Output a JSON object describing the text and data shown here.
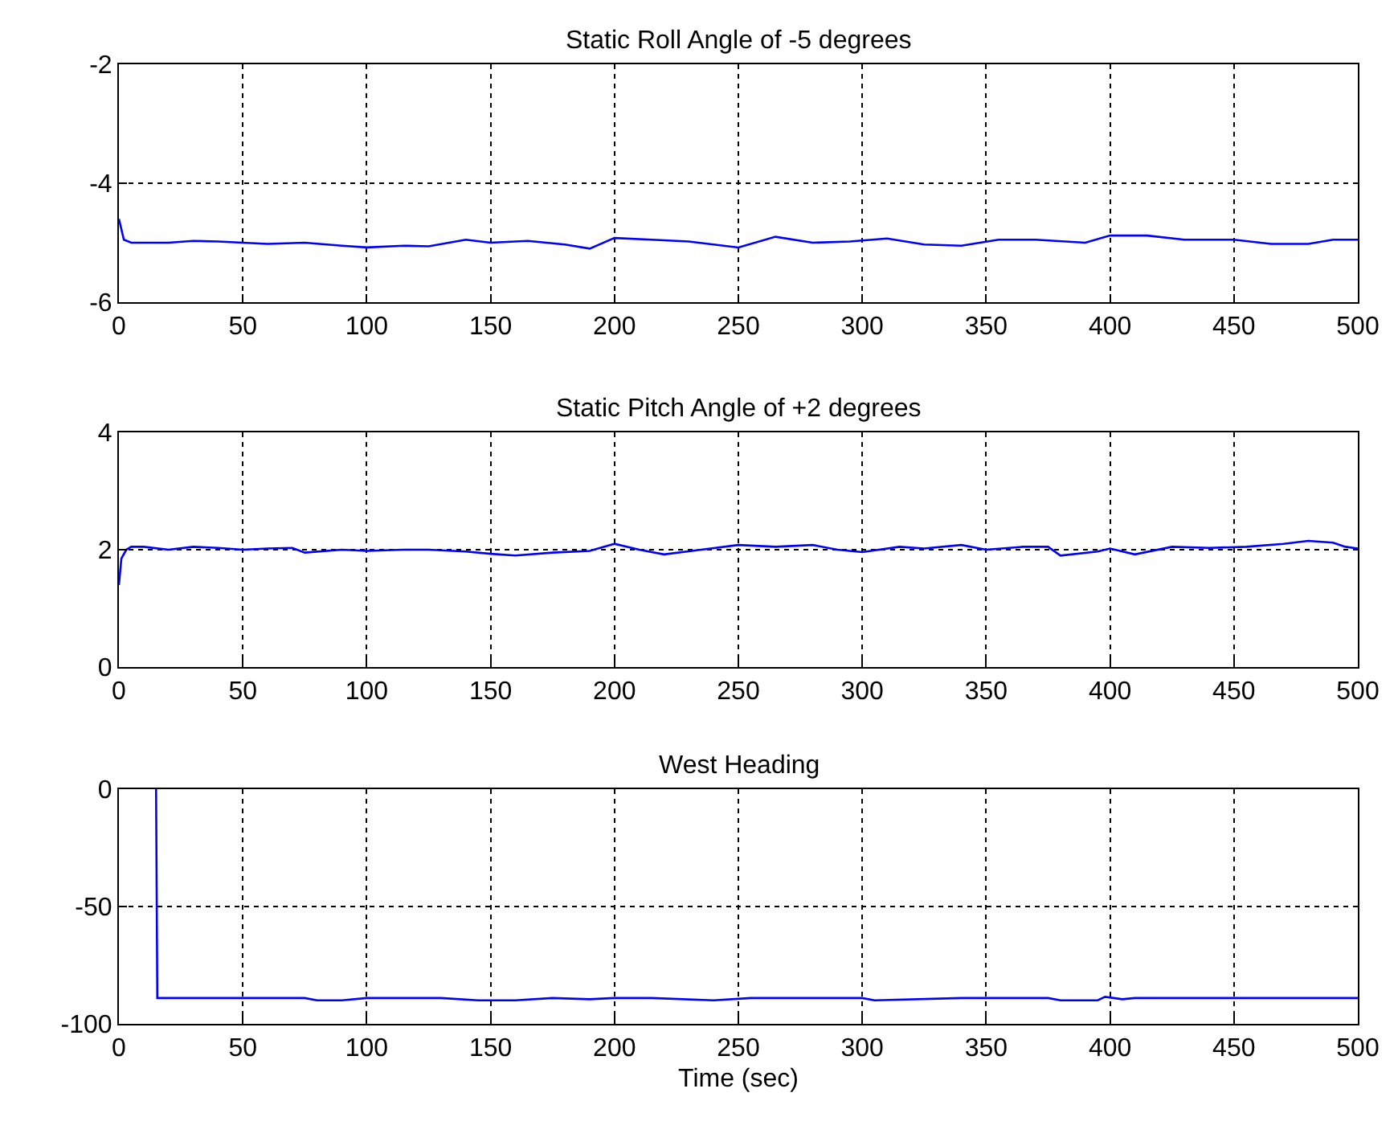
{
  "chart_data": [
    {
      "type": "line",
      "title": "Static Roll Angle of -5 degrees",
      "xlim": [
        0,
        500
      ],
      "xticks": [
        0,
        50,
        100,
        150,
        200,
        250,
        300,
        350,
        400,
        450,
        500
      ],
      "ylim": [
        -6,
        -2
      ],
      "yticks": [
        -6,
        -4,
        -2
      ],
      "grid": true,
      "series": [
        {
          "color": "#0000ff",
          "x": [
            0,
            2,
            5,
            10,
            20,
            30,
            40,
            50,
            60,
            75,
            90,
            100,
            115,
            125,
            140,
            150,
            165,
            180,
            190,
            200,
            215,
            230,
            250,
            265,
            280,
            295,
            310,
            325,
            340,
            355,
            370,
            390,
            400,
            415,
            430,
            450,
            465,
            480,
            490,
            500
          ],
          "values": [
            -4.6,
            -4.95,
            -5.0,
            -5.0,
            -5.0,
            -4.97,
            -4.98,
            -5.0,
            -5.02,
            -5.0,
            -5.05,
            -5.08,
            -5.05,
            -5.06,
            -4.95,
            -5.0,
            -4.97,
            -5.03,
            -5.1,
            -4.92,
            -4.95,
            -4.98,
            -5.08,
            -4.9,
            -5.0,
            -4.98,
            -4.93,
            -5.03,
            -5.05,
            -4.95,
            -4.95,
            -5.0,
            -4.88,
            -4.88,
            -4.95,
            -4.95,
            -5.02,
            -5.02,
            -4.95,
            -4.95
          ]
        }
      ]
    },
    {
      "type": "line",
      "title": "Static Pitch Angle of +2 degrees",
      "xlim": [
        0,
        500
      ],
      "xticks": [
        0,
        50,
        100,
        150,
        200,
        250,
        300,
        350,
        400,
        450,
        500
      ],
      "ylim": [
        0,
        4
      ],
      "yticks": [
        0,
        2,
        4
      ],
      "grid": true,
      "series": [
        {
          "color": "#0000ff",
          "x": [
            0,
            1,
            3,
            5,
            10,
            20,
            30,
            40,
            50,
            60,
            70,
            75,
            90,
            100,
            115,
            125,
            140,
            150,
            160,
            175,
            190,
            200,
            210,
            220,
            235,
            250,
            265,
            280,
            290,
            300,
            315,
            325,
            340,
            350,
            365,
            375,
            380,
            395,
            400,
            410,
            425,
            440,
            455,
            470,
            480,
            490,
            495,
            500
          ],
          "values": [
            1.4,
            1.85,
            2.0,
            2.05,
            2.05,
            2.0,
            2.05,
            2.03,
            2.0,
            2.02,
            2.03,
            1.95,
            2.0,
            1.98,
            2.0,
            2.0,
            1.97,
            1.93,
            1.9,
            1.95,
            1.98,
            2.1,
            2.0,
            1.92,
            2.0,
            2.08,
            2.05,
            2.08,
            2.0,
            1.96,
            2.05,
            2.02,
            2.08,
            2.0,
            2.05,
            2.05,
            1.9,
            1.97,
            2.02,
            1.92,
            2.05,
            2.03,
            2.05,
            2.1,
            2.15,
            2.12,
            2.05,
            2.02
          ]
        }
      ]
    },
    {
      "type": "line",
      "title": "West Heading",
      "xlabel": "Time (sec)",
      "xlim": [
        0,
        500
      ],
      "xticks": [
        0,
        50,
        100,
        150,
        200,
        250,
        300,
        350,
        400,
        450,
        500
      ],
      "ylim": [
        -100,
        0
      ],
      "yticks": [
        -100,
        -50,
        0
      ],
      "grid": true,
      "series": [
        {
          "color": "#0000ff",
          "x": [
            15,
            15.5,
            25,
            40,
            60,
            75,
            80,
            90,
            100,
            115,
            130,
            145,
            160,
            175,
            190,
            200,
            215,
            240,
            255,
            300,
            305,
            340,
            360,
            375,
            380,
            395,
            398,
            405,
            410,
            450,
            500
          ],
          "values": [
            0,
            -89,
            -89,
            -89,
            -89,
            -89,
            -90,
            -90,
            -89,
            -89,
            -89,
            -90,
            -90,
            -89,
            -89.5,
            -89,
            -89,
            -90,
            -89,
            -89,
            -90,
            -89,
            -89,
            -89,
            -90,
            -90,
            -88.5,
            -89.5,
            -89,
            -89,
            -89
          ]
        }
      ]
    }
  ]
}
